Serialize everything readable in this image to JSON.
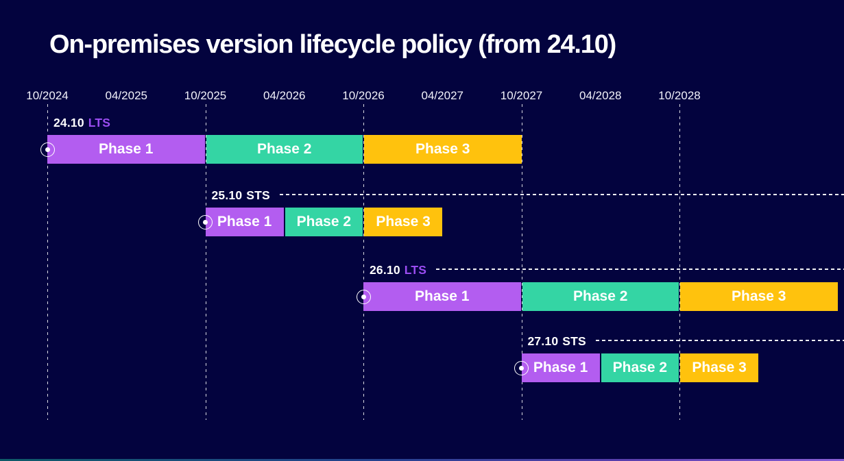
{
  "title": "On-premises version lifecycle policy (from 24.10)",
  "colors": {
    "background": "#03033e",
    "phase1": "#b35df0",
    "phase2": "#34d5a4",
    "phase3": "#ffc20d",
    "lts_accent": "#9b4df2",
    "sts_accent": "#ffffff",
    "text": "#ffffff"
  },
  "chart_data": {
    "type": "gantt",
    "title": "On-premises version lifecycle policy (from 24.10)",
    "x_axis": {
      "tick_labels": [
        "10/2024",
        "04/2025",
        "10/2025",
        "04/2026",
        "10/2026",
        "04/2027",
        "10/2027",
        "04/2028",
        "10/2028"
      ],
      "gridline_dates": [
        "10/2024",
        "10/2025",
        "10/2026",
        "10/2027",
        "10/2028"
      ],
      "unit": "month/year",
      "grid": "dashed vertical lines at each October"
    },
    "rows": [
      {
        "version": "24.10",
        "channel": "LTS",
        "start": "10/2024",
        "phases": [
          {
            "label": "Phase 1",
            "months": 12
          },
          {
            "label": "Phase 2",
            "months": 12
          },
          {
            "label": "Phase 3",
            "months": 12
          }
        ],
        "trailing_dashed_line": false
      },
      {
        "version": "25.10",
        "channel": "STS",
        "start": "10/2025",
        "phases": [
          {
            "label": "Phase 1",
            "months": 6
          },
          {
            "label": "Phase 2",
            "months": 6
          },
          {
            "label": "Phase 3",
            "months": 6
          }
        ],
        "trailing_dashed_line": true
      },
      {
        "version": "26.10",
        "channel": "LTS",
        "start": "10/2026",
        "phases": [
          {
            "label": "Phase 1",
            "months": 12
          },
          {
            "label": "Phase 2",
            "months": 12
          },
          {
            "label": "Phase 3",
            "months": 12
          }
        ],
        "trailing_dashed_line": true
      },
      {
        "version": "27.10",
        "channel": "STS",
        "start": "10/2027",
        "phases": [
          {
            "label": "Phase 1",
            "months": 6
          },
          {
            "label": "Phase 2",
            "months": 6
          },
          {
            "label": "Phase 3",
            "months": 6
          }
        ],
        "trailing_dashed_line": true
      }
    ]
  }
}
